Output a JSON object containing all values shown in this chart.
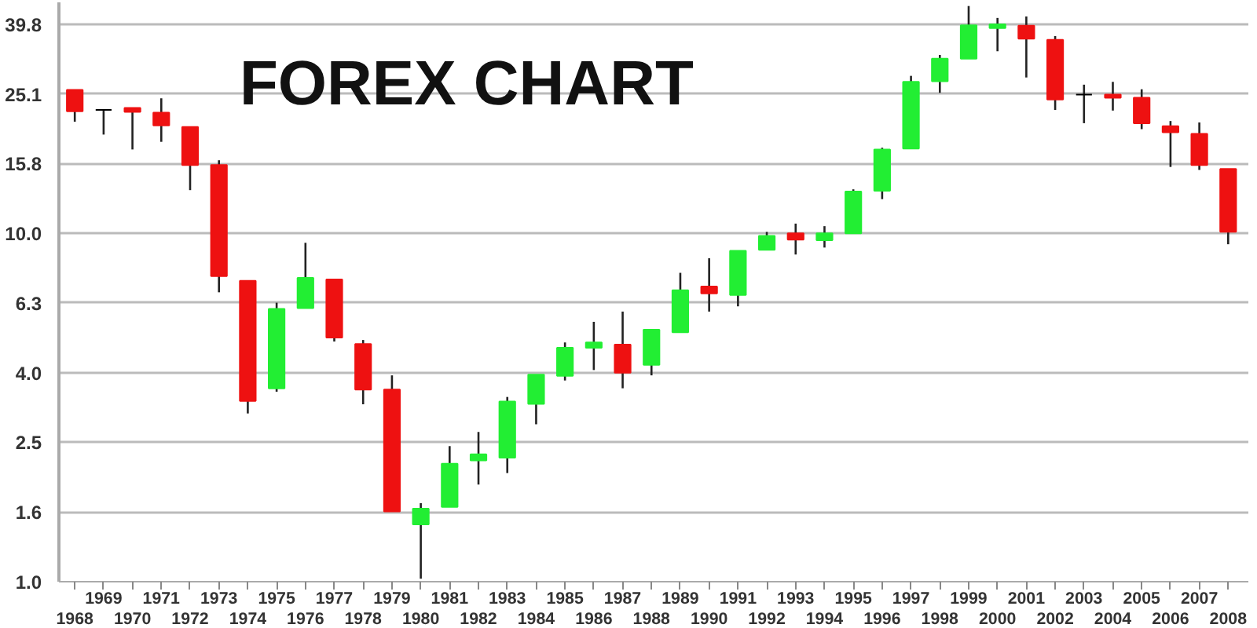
{
  "chart_data": {
    "type": "candlestick",
    "title": "FOREX CHART",
    "categories": [
      "1968",
      "1969",
      "1970",
      "1971",
      "1972",
      "1973",
      "1974",
      "1975",
      "1976",
      "1977",
      "1978",
      "1979",
      "1980",
      "1981",
      "1982",
      "1983",
      "1984",
      "1985",
      "1986",
      "1987",
      "1988",
      "1989",
      "1990",
      "1991",
      "1992",
      "1993",
      "1994",
      "1995",
      "1996",
      "1997",
      "1998",
      "1999",
      "2000",
      "2001",
      "2002",
      "2003",
      "2004",
      "2005",
      "2006",
      "2007",
      "2008"
    ],
    "ohlc": [
      [
        25.8,
        25.8,
        20.9,
        22.4
      ],
      [
        22.6,
        22.6,
        19.2,
        22.6
      ],
      [
        22.9,
        22.9,
        17.4,
        22.3
      ],
      [
        22.2,
        24.4,
        18.3,
        20.4
      ],
      [
        20.2,
        20.2,
        13.3,
        15.7
      ],
      [
        15.7,
        16.2,
        6.77,
        7.53
      ],
      [
        7.3,
        7.3,
        3.04,
        3.3
      ],
      [
        3.59,
        6.32,
        3.51,
        6.07
      ],
      [
        6.1,
        9.39,
        6.1,
        7.45
      ],
      [
        7.37,
        7.37,
        4.89,
        5.02
      ],
      [
        4.81,
        4.94,
        3.23,
        3.56
      ],
      [
        3.56,
        3.91,
        1.59,
        1.59
      ],
      [
        1.46,
        1.68,
        1.02,
        1.62
      ],
      [
        1.64,
        2.45,
        1.64,
        2.18
      ],
      [
        2.23,
        2.69,
        1.9,
        2.32
      ],
      [
        2.27,
        3.39,
        2.05,
        3.29
      ],
      [
        3.24,
        3.93,
        2.83,
        3.93
      ],
      [
        3.9,
        4.86,
        3.78,
        4.69
      ],
      [
        4.69,
        5.57,
        4.05,
        4.86
      ],
      [
        4.79,
        5.96,
        3.59,
        3.98
      ],
      [
        4.19,
        5.29,
        3.91,
        5.29
      ],
      [
        5.2,
        7.7,
        5.2,
        6.86
      ],
      [
        7.03,
        8.48,
        5.96,
        6.72
      ],
      [
        6.65,
        8.9,
        6.17,
        8.9
      ],
      [
        8.96,
        10.09,
        8.96,
        9.83
      ],
      [
        10.0,
        10.66,
        8.69,
        9.59
      ],
      [
        9.55,
        10.48,
        9.1,
        10.0
      ],
      [
        9.99,
        13.37,
        9.99,
        13.18
      ],
      [
        13.24,
        17.6,
        12.53,
        17.4
      ],
      [
        17.5,
        28.3,
        17.5,
        27.2
      ],
      [
        27.3,
        32.5,
        25.3,
        31.7
      ],
      [
        31.7,
        44.9,
        31.7,
        39.5
      ],
      [
        38.8,
        41.5,
        33.3,
        39.8
      ],
      [
        39.4,
        41.9,
        28.0,
        36.2
      ],
      [
        35.9,
        36.8,
        22.6,
        24.2
      ],
      [
        25.0,
        26.7,
        20.7,
        25.0
      ],
      [
        25.0,
        27.2,
        22.5,
        24.5
      ],
      [
        24.5,
        25.9,
        19.9,
        20.7
      ],
      [
        20.3,
        21.0,
        15.5,
        19.5
      ],
      [
        19.3,
        20.8,
        15.2,
        15.7
      ],
      [
        15.3,
        15.3,
        9.3,
        10.1
      ]
    ],
    "colors": [
      "#ee1111",
      "#000000",
      "#ee1111",
      "#ee1111",
      "#ee1111",
      "#ee1111",
      "#ee1111",
      "#22ee33",
      "#22ee33",
      "#ee1111",
      "#ee1111",
      "#ee1111",
      "#22ee33",
      "#22ee33",
      "#22ee33",
      "#22ee33",
      "#22ee33",
      "#22ee33",
      "#22ee33",
      "#ee1111",
      "#22ee33",
      "#22ee33",
      "#ee1111",
      "#22ee33",
      "#22ee33",
      "#ee1111",
      "#22ee33",
      "#22ee33",
      "#22ee33",
      "#22ee33",
      "#22ee33",
      "#22ee33",
      "#22ee33",
      "#ee1111",
      "#ee1111",
      "#000000",
      "#ee1111",
      "#ee1111",
      "#ee1111",
      "#ee1111",
      "#ee1111"
    ],
    "log": true,
    "ylim": [
      1.0,
      46
    ],
    "yticks": [
      {
        "value": 1,
        "label": "1.0"
      },
      {
        "value": 1.585,
        "label": "1.6"
      },
      {
        "value": 2.512,
        "label": "2.5"
      },
      {
        "value": 3.981,
        "label": "4.0"
      },
      {
        "value": 6.31,
        "label": "6.3"
      },
      {
        "value": 10,
        "label": "10.0"
      },
      {
        "value": 15.85,
        "label": "15.8"
      },
      {
        "value": 25.12,
        "label": "25.1"
      },
      {
        "value": 39.81,
        "label": "39.8"
      }
    ],
    "grid": "y"
  }
}
